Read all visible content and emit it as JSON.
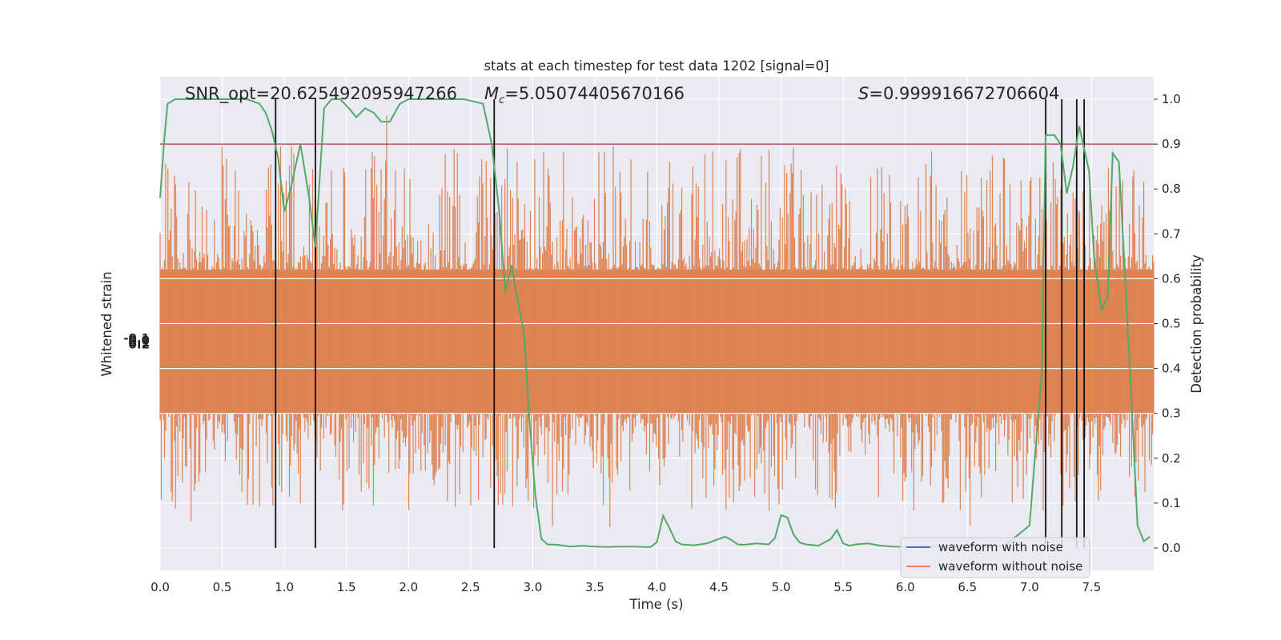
{
  "chart_data": {
    "type": "line",
    "title": "stats at each timestep for test data 1202 [signal=0]",
    "xlabel": "Time (s)",
    "ylabel_left": "Whitened strain",
    "ylabel_right": "Detection probability",
    "xlim": [
      0,
      8
    ],
    "ylim_right": [
      -0.05,
      1.05
    ],
    "x_ticks": [
      "0.0",
      "0.5",
      "1.0",
      "1.5",
      "2.0",
      "2.5",
      "3.0",
      "3.5",
      "4.0",
      "4.5",
      "5.0",
      "5.5",
      "6.0",
      "6.5",
      "7.0",
      "7.5"
    ],
    "y_ticks_right": [
      "0.0",
      "0.1",
      "0.2",
      "0.3",
      "0.4",
      "0.5",
      "0.6",
      "0.7",
      "0.8",
      "0.9",
      "1.0"
    ],
    "left_tick_labels": [
      "-0.1",
      "0.0",
      "0.1",
      "0.2"
    ],
    "grid": true,
    "legend_position": "lower right",
    "annotations": {
      "snr": "SNR_opt=20.625492095947266",
      "mc_symbol": "M",
      "mc_sub": "c",
      "mc_value": "=5.05074405670166",
      "s_symbol": "S",
      "s_value": "=0.999916672706604"
    },
    "threshold": 0.9,
    "vertical_lines_x": [
      0.93,
      1.25,
      2.69,
      7.13,
      7.26,
      7.38,
      7.44
    ],
    "series": [
      {
        "name": "waveform with noise",
        "color": "#4c72b0",
        "values": []
      },
      {
        "name": "waveform without noise",
        "color": "#dd8452",
        "envelope": {
          "typical_low": 0.3,
          "typical_high": 0.62,
          "extreme_low": 0.04,
          "extreme_high": 1.0
        }
      },
      {
        "color": "#55a868",
        "x": [
          0.0,
          0.03,
          0.06,
          0.12,
          0.2,
          0.3,
          0.4,
          0.5,
          0.6,
          0.7,
          0.8,
          0.85,
          0.9,
          0.95,
          1.0,
          1.05,
          1.13,
          1.2,
          1.25,
          1.32,
          1.38,
          1.45,
          1.52,
          1.58,
          1.65,
          1.72,
          1.78,
          1.85,
          1.93,
          2.0,
          2.2,
          2.45,
          2.6,
          2.67,
          2.73,
          2.78,
          2.83,
          2.88,
          2.93,
          2.97,
          3.02,
          3.07,
          3.12,
          3.2,
          3.3,
          3.4,
          3.5,
          3.6,
          3.7,
          3.8,
          3.9,
          3.95,
          4.0,
          4.05,
          4.1,
          4.15,
          4.2,
          4.3,
          4.4,
          4.5,
          4.55,
          4.6,
          4.65,
          4.7,
          4.8,
          4.9,
          4.95,
          5.0,
          5.05,
          5.1,
          5.15,
          5.2,
          5.3,
          5.4,
          5.45,
          5.5,
          5.55,
          5.6,
          5.7,
          5.8,
          5.9,
          6.0,
          6.2,
          6.5,
          6.8,
          7.0,
          7.1,
          7.13,
          7.16,
          7.2,
          7.25,
          7.3,
          7.35,
          7.4,
          7.44,
          7.48,
          7.52,
          7.58,
          7.63,
          7.67,
          7.72,
          7.78,
          7.83,
          7.87,
          7.92,
          7.97
        ],
        "values": [
          0.78,
          0.9,
          0.99,
          1.0,
          1.0,
          1.0,
          1.0,
          1.0,
          1.0,
          1.0,
          0.99,
          0.97,
          0.93,
          0.87,
          0.75,
          0.8,
          0.9,
          0.78,
          0.67,
          0.98,
          1.0,
          1.0,
          0.98,
          0.96,
          0.98,
          0.97,
          0.95,
          0.95,
          0.99,
          1.0,
          1.0,
          1.0,
          0.99,
          0.9,
          0.75,
          0.57,
          0.63,
          0.55,
          0.48,
          0.3,
          0.12,
          0.02,
          0.008,
          0.007,
          0.003,
          0.005,
          0.003,
          0.002,
          0.003,
          0.003,
          0.002,
          0.002,
          0.013,
          0.072,
          0.045,
          0.015,
          0.008,
          0.006,
          0.01,
          0.02,
          0.025,
          0.018,
          0.008,
          0.007,
          0.01,
          0.008,
          0.022,
          0.073,
          0.068,
          0.03,
          0.012,
          0.008,
          0.005,
          0.02,
          0.04,
          0.01,
          0.005,
          0.008,
          0.01,
          0.005,
          0.003,
          0.002,
          0.003,
          0.004,
          0.005,
          0.05,
          0.4,
          0.92,
          0.92,
          0.92,
          0.9,
          0.79,
          0.85,
          0.94,
          0.89,
          0.84,
          0.65,
          0.53,
          0.56,
          0.88,
          0.86,
          0.55,
          0.28,
          0.05,
          0.015,
          0.025
        ]
      }
    ]
  }
}
